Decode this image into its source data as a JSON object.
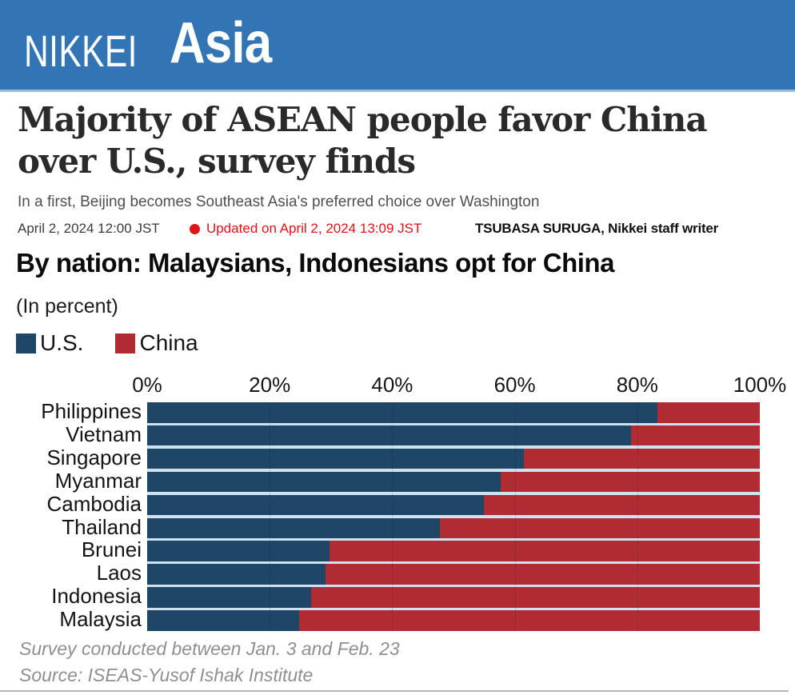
{
  "header": {
    "brand_first": "NIKKEI",
    "brand_second": "Asia"
  },
  "article": {
    "headline": "Majority of ASEAN people favor China over U.S., survey finds",
    "subtitle": "In a first, Beijing becomes Southeast Asia's preferred choice over Washington",
    "published": "April 2, 2024 12:00 JST",
    "updated": "Updated on April 2, 2024 13:09 JST",
    "byline": "TSUBASA SURUGA, Nikkei staff writer"
  },
  "colors": {
    "banner_blue": "#3274b4",
    "us_blue": "#1e4667",
    "china_red": "#b12b33",
    "updated_red": "#e31119",
    "bar_gap": "#cfe2f0"
  },
  "chart_data": {
    "type": "bar",
    "orientation": "horizontal",
    "stacked": true,
    "title": "By nation: Malaysians, Indonesians opt for China",
    "unit_note": "(In percent)",
    "xlabel": "",
    "ylabel": "",
    "xlim": [
      0,
      100
    ],
    "x_ticks": [
      "0%",
      "20%",
      "40%",
      "60%",
      "80%",
      "100%"
    ],
    "grid": "faint dotted vertical at 20/40/60/80",
    "legend_position": "top-left",
    "categories": [
      "Philippines",
      "Vietnam",
      "Singapore",
      "Myanmar",
      "Cambodia",
      "Thailand",
      "Brunei",
      "Laos",
      "Indonesia",
      "Malaysia"
    ],
    "series": [
      {
        "name": "U.S.",
        "color": "#1e4667",
        "values": [
          83.3,
          79.0,
          61.5,
          57.7,
          55.0,
          47.8,
          29.8,
          29.1,
          26.8,
          24.8
        ]
      },
      {
        "name": "China",
        "color": "#b12b33",
        "values": [
          16.7,
          21.0,
          38.5,
          42.3,
          45.0,
          52.2,
          70.2,
          70.9,
          73.2,
          75.2
        ]
      }
    ],
    "footnote_line1": "Survey conducted between Jan. 3 and Feb. 23",
    "footnote_line2": "Source: ISEAS-Yusof Ishak Institute"
  }
}
